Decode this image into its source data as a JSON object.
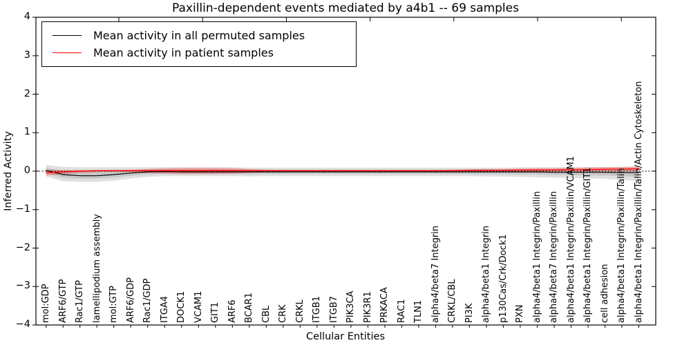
{
  "legend": {
    "items": [
      {
        "label": "Mean activity in all permuted samples",
        "color": "#000000"
      },
      {
        "label": "Mean activity in patient samples",
        "color": "#ff0000"
      }
    ],
    "position": "upper left"
  },
  "chart_data": {
    "type": "line",
    "title": "Paxillin-dependent events mediated by a4b1 -- 69 samples",
    "xlabel": "Cellular Entities",
    "ylabel": "Inferred Activity",
    "ylim": [
      -4,
      4
    ],
    "yticks": [
      -4,
      -3,
      -2,
      -1,
      0,
      1,
      2,
      3,
      4
    ],
    "grid": false,
    "reference_line": {
      "y": 0,
      "style": "dotted",
      "color": "#000000"
    },
    "categories": [
      "mol:GDP",
      "ARF6/GTP",
      "Rac1/GTP",
      "lamellipodium assembly",
      "mol:GTP",
      "ARF6/GDP",
      "Rac1/GDP",
      "ITGA4",
      "DOCK1",
      "VCAM1",
      "GIT1",
      "ARF6",
      "BCAR1",
      "CBL",
      "CRK",
      "CRKL",
      "ITGB1",
      "ITGB7",
      "PIK3CA",
      "PIK3R1",
      "PRKACA",
      "RAC1",
      "TLN1",
      "alpha4/beta7 Integrin",
      "CRKL/CBL",
      "PI3K",
      "alpha4/beta1 Integrin",
      "p130Cas/Crk/Dock1",
      "PXN",
      "alpha4/beta1 Integrin/Paxillin",
      "alpha4/beta7 Integrin/Paxillin",
      "alpha4/beta1 Integrin/Paxillin/VCAM1",
      "alpha4/beta1 Integrin/Paxillin/GIT1",
      "cell adhesion",
      "alpha4/beta1 Integrin/Paxillin/Talin",
      "alpha4/beta1 Integrin/Paxillin/Talin/Actin Cytoskeleton"
    ],
    "series": [
      {
        "name": "Mean activity in all permuted samples",
        "color": "#000000",
        "band_color": "#000000",
        "band_opacity": 0.12,
        "values": [
          0.02,
          -0.09,
          -0.12,
          -0.12,
          -0.09,
          -0.05,
          -0.02,
          -0.01,
          -0.02,
          -0.02,
          -0.02,
          -0.02,
          -0.02,
          -0.02,
          -0.02,
          -0.02,
          -0.02,
          -0.02,
          -0.02,
          -0.02,
          -0.02,
          -0.02,
          -0.02,
          -0.02,
          -0.02,
          -0.02,
          -0.02,
          -0.02,
          -0.02,
          -0.02,
          -0.03,
          -0.03,
          -0.03,
          -0.03,
          -0.04,
          -0.04
        ],
        "band_upper": [
          0.16,
          0.11,
          0.1,
          0.1,
          0.1,
          0.1,
          0.1,
          0.1,
          0.1,
          0.1,
          0.1,
          0.1,
          0.09,
          0.09,
          0.09,
          0.09,
          0.09,
          0.09,
          0.09,
          0.09,
          0.09,
          0.09,
          0.09,
          0.09,
          0.09,
          0.09,
          0.09,
          0.09,
          0.1,
          0.1,
          0.1,
          0.1,
          0.1,
          0.11,
          0.11,
          0.12
        ],
        "band_lower": [
          -0.14,
          -0.26,
          -0.28,
          -0.28,
          -0.25,
          -0.19,
          -0.15,
          -0.13,
          -0.13,
          -0.13,
          -0.13,
          -0.13,
          -0.14,
          -0.13,
          -0.13,
          -0.13,
          -0.13,
          -0.13,
          -0.13,
          -0.13,
          -0.13,
          -0.13,
          -0.13,
          -0.13,
          -0.13,
          -0.13,
          -0.14,
          -0.14,
          -0.15,
          -0.16,
          -0.17,
          -0.18,
          -0.19,
          -0.2,
          -0.23,
          -0.26
        ]
      },
      {
        "name": "Mean activity in patient samples",
        "color": "#ff0000",
        "band_color": "#ff0000",
        "band_opacity": 0.22,
        "values": [
          -0.04,
          -0.02,
          0.0,
          0.01,
          0.01,
          0.01,
          0.01,
          0.01,
          0.01,
          0.01,
          0.01,
          0.01,
          0.01,
          0.01,
          0.01,
          0.01,
          0.01,
          0.01,
          0.01,
          0.01,
          0.01,
          0.01,
          0.01,
          0.01,
          0.01,
          0.02,
          0.02,
          0.02,
          0.03,
          0.03,
          0.03,
          0.04,
          0.04,
          0.05,
          0.05,
          0.06
        ],
        "band_upper": [
          0.04,
          0.03,
          0.03,
          0.03,
          0.03,
          0.04,
          0.06,
          0.08,
          0.09,
          0.09,
          0.09,
          0.08,
          0.06,
          0.04,
          0.03,
          0.03,
          0.03,
          0.03,
          0.03,
          0.03,
          0.03,
          0.03,
          0.03,
          0.03,
          0.04,
          0.05,
          0.06,
          0.06,
          0.07,
          0.08,
          0.08,
          0.09,
          0.1,
          0.1,
          0.11,
          0.12
        ],
        "band_lower": [
          -0.12,
          -0.08,
          -0.05,
          -0.03,
          -0.02,
          -0.03,
          -0.05,
          -0.07,
          -0.08,
          -0.08,
          -0.08,
          -0.07,
          -0.05,
          -0.03,
          -0.02,
          -0.02,
          -0.02,
          -0.02,
          -0.02,
          -0.02,
          -0.02,
          -0.02,
          -0.02,
          -0.02,
          -0.02,
          -0.02,
          -0.02,
          -0.02,
          -0.03,
          -0.03,
          -0.02,
          -0.02,
          -0.02,
          -0.01,
          -0.01,
          -0.01
        ]
      }
    ],
    "legend_position": "upper left"
  }
}
